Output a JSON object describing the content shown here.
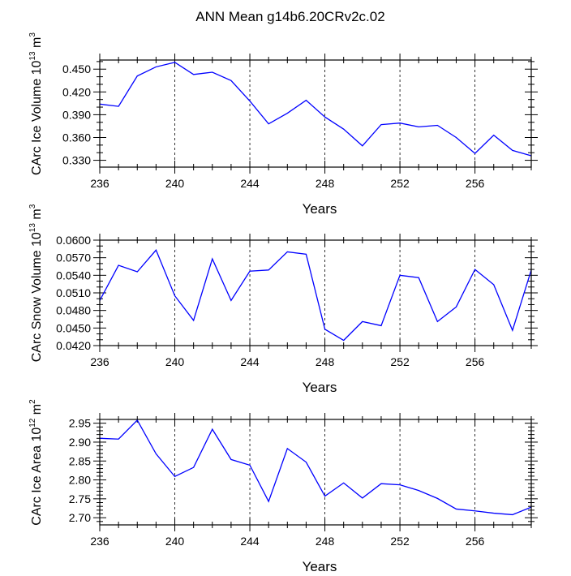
{
  "title": "ANN Mean g14b6.20CRv2c.02",
  "chart_data": [
    {
      "type": "line",
      "ylabel": {
        "text": "CArc Ice Volume 10",
        "exp": "13",
        "unit": " m",
        "unit_exp": "3"
      },
      "xlabel": "Years",
      "xlim": [
        236,
        259
      ],
      "ylim": [
        0.321,
        0.462
      ],
      "xticks": [
        236,
        240,
        244,
        248,
        252,
        256
      ],
      "xtick_labels": [
        "236",
        "240",
        "244",
        "248",
        "252",
        "256"
      ],
      "yticks": [
        0.33,
        0.36,
        0.39,
        0.42,
        0.45
      ],
      "ytick_labels": [
        "0.330",
        "0.360",
        "0.390",
        "0.420",
        "0.450"
      ],
      "yminor_step": 0.01,
      "grid_x": true,
      "line_color": "#0000ff",
      "x": [
        236,
        237,
        238,
        239,
        240,
        241,
        242,
        243,
        244,
        245,
        246,
        247,
        248,
        249,
        250,
        251,
        252,
        253,
        254,
        255,
        256,
        257,
        258,
        259
      ],
      "values": [
        0.404,
        0.401,
        0.441,
        0.453,
        0.459,
        0.443,
        0.446,
        0.435,
        0.408,
        0.378,
        0.392,
        0.409,
        0.387,
        0.371,
        0.349,
        0.377,
        0.379,
        0.374,
        0.376,
        0.36,
        0.339,
        0.363,
        0.343,
        0.336
      ]
    },
    {
      "type": "line",
      "ylabel": {
        "text": "CArc Snow Volume 10",
        "exp": "13",
        "unit": " m",
        "unit_exp": "3"
      },
      "xlabel": "Years",
      "xlim": [
        236,
        259
      ],
      "ylim": [
        0.042,
        0.06
      ],
      "xticks": [
        236,
        240,
        244,
        248,
        252,
        256
      ],
      "xtick_labels": [
        "236",
        "240",
        "244",
        "248",
        "252",
        "256"
      ],
      "yticks": [
        0.042,
        0.045,
        0.048,
        0.051,
        0.054,
        0.057,
        0.06
      ],
      "ytick_labels": [
        "0.0420",
        "0.0450",
        "0.0480",
        "0.0510",
        "0.0540",
        "0.0570",
        "0.0600"
      ],
      "yminor_step": 0.001,
      "grid_x": true,
      "line_color": "#0000ff",
      "x": [
        236,
        237,
        238,
        239,
        240,
        241,
        242,
        243,
        244,
        245,
        246,
        247,
        248,
        249,
        250,
        251,
        252,
        253,
        254,
        255,
        256,
        257,
        258,
        259
      ],
      "values": [
        0.0497,
        0.0557,
        0.0546,
        0.0583,
        0.0505,
        0.0463,
        0.0568,
        0.0497,
        0.0547,
        0.0549,
        0.058,
        0.0576,
        0.0448,
        0.0429,
        0.0461,
        0.0454,
        0.054,
        0.0536,
        0.0461,
        0.0486,
        0.055,
        0.0524,
        0.0446,
        0.0549
      ]
    },
    {
      "type": "line",
      "ylabel": {
        "text": "CArc Ice Area 10",
        "exp": "12",
        "unit": " m",
        "unit_exp": "2"
      },
      "xlabel": "Years",
      "xlim": [
        236,
        259
      ],
      "ylim": [
        2.681,
        2.96
      ],
      "xticks": [
        236,
        240,
        244,
        248,
        252,
        256
      ],
      "xtick_labels": [
        "236",
        "240",
        "244",
        "248",
        "252",
        "256"
      ],
      "yticks": [
        2.7,
        2.75,
        2.8,
        2.85,
        2.9,
        2.95
      ],
      "ytick_labels": [
        "2.70",
        "2.75",
        "2.80",
        "2.85",
        "2.90",
        "2.95"
      ],
      "yminor_step": 0.01,
      "grid_x": true,
      "line_color": "#0000ff",
      "x": [
        236,
        237,
        238,
        239,
        240,
        241,
        242,
        243,
        244,
        245,
        246,
        247,
        248,
        249,
        250,
        251,
        252,
        253,
        254,
        255,
        256,
        257,
        258,
        259
      ],
      "values": [
        2.91,
        2.908,
        2.958,
        2.869,
        2.809,
        2.833,
        2.934,
        2.854,
        2.839,
        2.743,
        2.883,
        2.847,
        2.757,
        2.792,
        2.752,
        2.79,
        2.787,
        2.772,
        2.751,
        2.723,
        2.718,
        2.712,
        2.708,
        2.728
      ]
    }
  ]
}
